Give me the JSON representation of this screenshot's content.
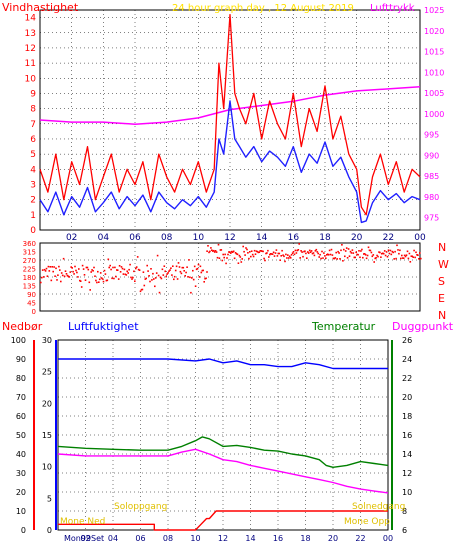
{
  "title": "24 hour graph day , 12 August 2019",
  "colors": {
    "wind": "#ff0000",
    "wind_avg": "#2020ff",
    "pressure": "#ff00ff",
    "direction": "#ff0000",
    "rain": "#ff0000",
    "humidity": "#0000ff",
    "temperature": "#008000",
    "dewpoint": "#ff00ff",
    "sunshine": "#ffe000",
    "axis_green": "#008000",
    "frame": "#000000"
  },
  "chart_data": [
    {
      "type": "line",
      "name": "wind-pressure",
      "title": "24 hour graph day , 12 August 2019",
      "ylabel_left": "Vindhastighet",
      "ylabel_right": "Lufttrykk",
      "x_ticks": [
        "02",
        "04",
        "06",
        "08",
        "10",
        "12",
        "14",
        "16",
        "18",
        "20",
        "22",
        "00"
      ],
      "x_range": [
        0,
        24
      ],
      "y_left_range": [
        0,
        14.5
      ],
      "y_left_ticks": [
        0,
        1,
        2,
        3,
        4,
        5,
        6,
        7,
        8,
        9,
        10,
        11,
        12,
        13,
        14
      ],
      "y_right_range": [
        972,
        1025
      ],
      "y_right_ticks": [
        975,
        980,
        985,
        990,
        995,
        1000,
        1005,
        1010,
        1015,
        1020,
        1025
      ],
      "grid": true,
      "wind_gust": {
        "x": [
          0,
          0.5,
          1,
          1.5,
          2,
          2.5,
          3,
          3.5,
          4,
          4.5,
          5,
          5.5,
          6,
          6.5,
          7,
          7.5,
          8,
          8.5,
          9,
          9.5,
          10,
          10.5,
          11,
          11.3,
          11.6,
          12,
          12.3,
          12.6,
          13,
          13.5,
          14,
          14.5,
          15,
          15.5,
          16,
          16.5,
          17,
          17.5,
          18,
          18.5,
          19,
          19.5,
          20,
          20.3,
          20.6,
          21,
          21.5,
          22,
          22.5,
          23,
          23.5,
          24
        ],
        "y": [
          4,
          2.5,
          5,
          2,
          4.5,
          3,
          5.5,
          2,
          3.5,
          5,
          2.5,
          4,
          3,
          4.5,
          2,
          5,
          3.5,
          2.5,
          4,
          3,
          4.5,
          2.5,
          4,
          11,
          8,
          14.2,
          9,
          8,
          7,
          9,
          6,
          8.5,
          7,
          6,
          9,
          5.5,
          8,
          6.5,
          9.5,
          6,
          7.5,
          5,
          4,
          1.5,
          1,
          3.5,
          5,
          3,
          4.5,
          2.5,
          4,
          3.5
        ]
      },
      "wind_avg": {
        "x": [
          0,
          0.5,
          1,
          1.5,
          2,
          2.5,
          3,
          3.5,
          4,
          4.5,
          5,
          5.5,
          6,
          6.5,
          7,
          7.5,
          8,
          8.5,
          9,
          9.5,
          10,
          10.5,
          11,
          11.3,
          11.6,
          12,
          12.3,
          12.6,
          13,
          13.5,
          14,
          14.5,
          15,
          15.5,
          16,
          16.5,
          17,
          17.5,
          18,
          18.5,
          19,
          19.5,
          20,
          20.3,
          20.6,
          21,
          21.5,
          22,
          22.5,
          23,
          23.5,
          24
        ],
        "y": [
          2,
          1.2,
          2.5,
          1,
          2.2,
          1.5,
          2.8,
          1.2,
          1.8,
          2.5,
          1.4,
          2.2,
          1.6,
          2.3,
          1.2,
          2.5,
          1.8,
          1.4,
          2,
          1.6,
          2.2,
          1.5,
          2.5,
          6,
          5,
          8.5,
          6,
          5.5,
          4.8,
          5.5,
          4.5,
          5.2,
          4.8,
          4.2,
          5.5,
          3.8,
          5,
          4.4,
          5.8,
          4.2,
          4.8,
          3.5,
          2.5,
          0.5,
          0.6,
          1.8,
          2.6,
          2,
          2.4,
          1.8,
          2.2,
          2
        ]
      },
      "pressure": {
        "x": [
          0,
          2,
          4,
          6,
          8,
          10,
          12,
          14,
          16,
          18,
          20,
          22,
          24
        ],
        "y": [
          998.5,
          998,
          998,
          997.5,
          998,
          999,
          1001,
          1002,
          1003,
          1004.5,
          1005.5,
          1006,
          1006.5
        ]
      }
    },
    {
      "type": "scatter",
      "name": "wind-direction",
      "ylabel_right": "N W S E N",
      "compass": [
        "N",
        "W",
        "S",
        "E",
        "N"
      ],
      "y_range": [
        0,
        360
      ],
      "y_ticks": [
        0,
        45,
        90,
        135,
        180,
        225,
        270,
        315,
        360
      ],
      "y_tick_labels": [
        "0",
        "45",
        "90",
        "135",
        "180",
        "225",
        "270",
        "315",
        "360"
      ],
      "x_range": [
        0,
        24
      ],
      "grid": true,
      "bands": [
        {
          "x_start": 0,
          "x_end": 10.5,
          "center": 200,
          "spread": 45
        },
        {
          "x_start": 10.5,
          "x_end": 24,
          "center": 305,
          "spread": 25
        }
      ]
    },
    {
      "type": "line",
      "name": "rain-humidity-temp-dew",
      "ylabel_rain": "Nedbør",
      "ylabel_humidity": "Luftfuktighet",
      "ylabel_temp": "Temperatur",
      "ylabel_dew": "Duggpunkt",
      "rain_ticks": [
        0,
        10,
        20,
        30,
        40,
        50,
        60,
        70,
        80,
        90,
        100
      ],
      "humidity_ticks": [
        0,
        5,
        10,
        15,
        20,
        25,
        30
      ],
      "temp_ticks": [
        6,
        8,
        10,
        12,
        14,
        16,
        18,
        20,
        22,
        24,
        26
      ],
      "x_ticks": [
        "02",
        "04",
        "06",
        "08",
        "10",
        "12",
        "14",
        "16",
        "18",
        "20",
        "22",
        "00"
      ],
      "x_range": [
        0,
        24
      ],
      "annotations": {
        "sunrise": "Soloppgang",
        "sunset": "Solnedgang",
        "moonset": "Mone Ned",
        "moonrise": "Mone Opp",
        "moon_phase": "Mon99Set"
      },
      "humidity": {
        "x": [
          0,
          2,
          4,
          6,
          8,
          10,
          11,
          12,
          13,
          14,
          15,
          16,
          17,
          18,
          19,
          20,
          21,
          22,
          23,
          24
        ],
        "y": [
          90,
          90,
          90,
          90,
          90,
          89,
          90,
          88,
          89,
          87,
          87,
          86,
          86,
          88,
          87,
          85,
          85,
          85,
          85,
          85
        ]
      },
      "temperature": {
        "x": [
          0,
          2,
          4,
          6,
          8,
          9,
          10,
          10.5,
          11,
          12,
          13,
          14,
          15,
          16,
          17,
          18,
          19,
          19.5,
          20,
          21,
          22,
          23,
          24
        ],
        "y": [
          14.8,
          14.6,
          14.5,
          14.4,
          14.4,
          14.8,
          15.4,
          15.8,
          15.6,
          14.8,
          14.9,
          14.7,
          14.4,
          14.3,
          14,
          13.8,
          13.4,
          12.8,
          12.6,
          12.8,
          13.2,
          13,
          12.8
        ]
      },
      "dewpoint": {
        "x": [
          0,
          2,
          4,
          6,
          8,
          9,
          10,
          11,
          12,
          13,
          14,
          15,
          16,
          17,
          18,
          19,
          20,
          21,
          22,
          23,
          24
        ],
        "y": [
          14,
          13.8,
          13.8,
          13.8,
          13.8,
          14.2,
          14.5,
          14,
          13.4,
          13.2,
          12.8,
          12.5,
          12.2,
          11.9,
          11.6,
          11.3,
          11,
          10.6,
          10.3,
          10.1,
          9.9
        ]
      },
      "rain_total": {
        "x": [
          0,
          7,
          7,
          10,
          10.4,
          10.8,
          11,
          11.5,
          12,
          24
        ],
        "y": [
          3,
          3,
          0,
          0,
          3,
          6,
          6,
          10,
          10,
          10
        ]
      }
    }
  ]
}
